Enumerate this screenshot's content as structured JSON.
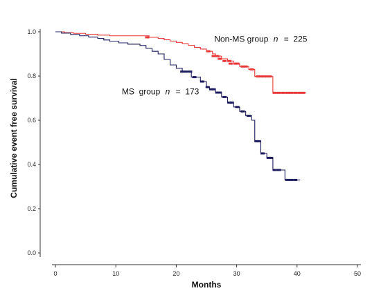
{
  "chart_data": {
    "type": "line",
    "subtype": "kaplan-meier-step",
    "xlabel": "Months",
    "ylabel": "Cumulative event free survival",
    "xlim": [
      0,
      50
    ],
    "ylim": [
      0,
      1.0
    ],
    "x_ticks": [
      "0",
      "10",
      "20",
      "30",
      "40",
      "50"
    ],
    "x_tick_values": [
      0,
      10,
      20,
      30,
      40,
      50
    ],
    "y_ticks": [
      "0.0",
      "0.2",
      "0.4",
      "0.6",
      "0.8",
      "1.0"
    ],
    "y_tick_values": [
      0.0,
      0.2,
      0.4,
      0.6,
      0.8,
      1.0
    ],
    "grid": false,
    "series": [
      {
        "name": "Non-MS group",
        "color": "#e8393a",
        "annotation": {
          "label": "Non-MS group",
          "n_symbol": "n",
          "n_text": "=  225"
        },
        "steps": [
          [
            0,
            1.0
          ],
          [
            1.5,
            0.996
          ],
          [
            3,
            0.993
          ],
          [
            5,
            0.989
          ],
          [
            7,
            0.985
          ],
          [
            9,
            0.982
          ],
          [
            15.5,
            0.975
          ],
          [
            17,
            0.97
          ],
          [
            18,
            0.964
          ],
          [
            19,
            0.958
          ],
          [
            20,
            0.952
          ],
          [
            21,
            0.946
          ],
          [
            22,
            0.939
          ],
          [
            23,
            0.93
          ],
          [
            24,
            0.922
          ],
          [
            25,
            0.912
          ],
          [
            26,
            0.9
          ],
          [
            26.5,
            0.89
          ],
          [
            27.5,
            0.878
          ],
          [
            28.5,
            0.868
          ],
          [
            29.5,
            0.856
          ],
          [
            30.5,
            0.843
          ],
          [
            32,
            0.83
          ],
          [
            33,
            0.798
          ],
          [
            36,
            0.724
          ],
          [
            41.5,
            0.724
          ]
        ],
        "censored": [
          [
            15.2,
            0.975
          ],
          [
            25.3,
            0.912
          ],
          [
            26.2,
            0.89
          ],
          [
            26.8,
            0.89
          ],
          [
            27.2,
            0.878
          ],
          [
            28,
            0.868
          ],
          [
            28.8,
            0.868
          ],
          [
            29,
            0.856
          ],
          [
            29.8,
            0.856
          ],
          [
            30.1,
            0.856
          ],
          [
            31,
            0.843
          ],
          [
            31.5,
            0.843
          ],
          [
            32.5,
            0.83
          ],
          [
            33.5,
            0.798
          ],
          [
            34,
            0.798
          ],
          [
            34.5,
            0.798
          ],
          [
            35,
            0.798
          ],
          [
            35.5,
            0.798
          ],
          [
            36.3,
            0.724
          ],
          [
            37,
            0.724
          ],
          [
            37.7,
            0.724
          ],
          [
            38.4,
            0.724
          ],
          [
            39,
            0.724
          ],
          [
            39.7,
            0.724
          ],
          [
            40.4,
            0.724
          ],
          [
            41,
            0.724
          ]
        ]
      },
      {
        "name": "MS group",
        "color": "#1c1c5e",
        "annotation": {
          "label": "MS  group",
          "n_symbol": "n",
          "n_text": "=  173"
        },
        "steps": [
          [
            0,
            1.0
          ],
          [
            1,
            0.994
          ],
          [
            2.5,
            0.988
          ],
          [
            4,
            0.982
          ],
          [
            5.5,
            0.976
          ],
          [
            7,
            0.97
          ],
          [
            8,
            0.963
          ],
          [
            9,
            0.957
          ],
          [
            10.5,
            0.95
          ],
          [
            12,
            0.944
          ],
          [
            14,
            0.938
          ],
          [
            15,
            0.925
          ],
          [
            16,
            0.912
          ],
          [
            17,
            0.9
          ],
          [
            18,
            0.875
          ],
          [
            19,
            0.85
          ],
          [
            20,
            0.835
          ],
          [
            21,
            0.82
          ],
          [
            22.5,
            0.795
          ],
          [
            24,
            0.775
          ],
          [
            25,
            0.75
          ],
          [
            25.5,
            0.74
          ],
          [
            26.5,
            0.725
          ],
          [
            27.5,
            0.705
          ],
          [
            28.5,
            0.68
          ],
          [
            29.5,
            0.66
          ],
          [
            30.5,
            0.64
          ],
          [
            31.5,
            0.62
          ],
          [
            32.5,
            0.6
          ],
          [
            33,
            0.505
          ],
          [
            34,
            0.45
          ],
          [
            35,
            0.43
          ],
          [
            36,
            0.375
          ],
          [
            38,
            0.33
          ],
          [
            40.5,
            0.33
          ]
        ],
        "censored": [
          [
            21,
            0.82
          ],
          [
            21.6,
            0.82
          ],
          [
            22.3,
            0.82
          ],
          [
            23,
            0.795
          ],
          [
            24.3,
            0.775
          ],
          [
            25.2,
            0.75
          ],
          [
            25.8,
            0.74
          ],
          [
            26.2,
            0.74
          ],
          [
            26.8,
            0.725
          ],
          [
            27.2,
            0.725
          ],
          [
            28,
            0.705
          ],
          [
            28.8,
            0.68
          ],
          [
            29.2,
            0.68
          ],
          [
            30.1,
            0.66
          ],
          [
            31,
            0.64
          ],
          [
            32,
            0.62
          ],
          [
            33.3,
            0.505
          ],
          [
            33.7,
            0.505
          ],
          [
            34.3,
            0.45
          ],
          [
            35.3,
            0.43
          ],
          [
            35.7,
            0.43
          ],
          [
            36.3,
            0.375
          ],
          [
            37,
            0.375
          ],
          [
            38.4,
            0.33
          ],
          [
            39,
            0.33
          ],
          [
            39.7,
            0.33
          ]
        ]
      }
    ]
  }
}
